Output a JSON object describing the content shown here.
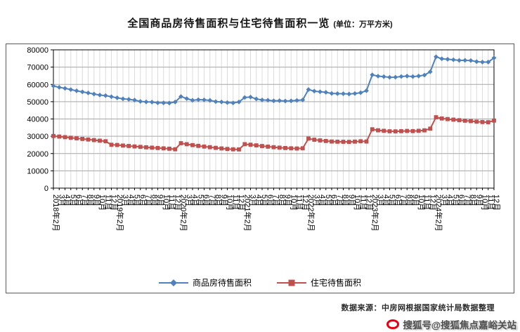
{
  "page": {
    "title_unit": "(单位：万平方米)"
  },
  "chart_data": {
    "type": "line",
    "title": "全国商品房待售面积与住宅待售面积一览",
    "unit": "万平方米",
    "ylim": [
      0,
      80000
    ],
    "y_ticks": [
      0,
      10000,
      20000,
      30000,
      40000,
      50000,
      60000,
      70000,
      80000
    ],
    "grid": {
      "horizontal": true,
      "vertical": true
    },
    "legend_position": "bottom",
    "x_labels": [
      "2018年2月",
      "3月",
      "4月",
      "5月",
      "6月",
      "7月",
      "8月",
      "9月",
      "10月",
      "11月",
      "12月",
      "2019年2月",
      "3月",
      "4月",
      "5月",
      "6月",
      "7月",
      "8月",
      "9月",
      "10月",
      "11月",
      "12月",
      "2020年2月",
      "3月",
      "4月",
      "5月",
      "6月",
      "7月",
      "8月",
      "9月",
      "10月",
      "11月",
      "12月",
      "2021年2月",
      "3月",
      "4月",
      "5月",
      "6月",
      "7月",
      "8月",
      "9月",
      "10月",
      "11月",
      "12月",
      "2022年2月",
      "3月",
      "4月",
      "5月",
      "6月",
      "7月",
      "8月",
      "9月",
      "10月",
      "11月",
      "12月",
      "2023年2月",
      "3月",
      "4月",
      "5月",
      "6月",
      "7月",
      "8月",
      "9月",
      "10月",
      "11月",
      "12月",
      "2024年2月",
      "3月",
      "4月",
      "5月",
      "6月",
      "7月",
      "8月",
      "9月",
      "10月",
      "11月",
      "12月"
    ],
    "series": [
      {
        "name": "商品房待售面积",
        "color": "#4f81bd",
        "marker": "diamond",
        "values": [
          59090,
          58330,
          57730,
          57010,
          56310,
          55680,
          55080,
          54420,
          53870,
          53520,
          52900,
          52250,
          51650,
          51380,
          50930,
          50160,
          49880,
          49780,
          49350,
          49320,
          49220,
          49820,
          53000,
          51780,
          50830,
          51180,
          51080,
          50780,
          50050,
          49840,
          49490,
          49290,
          49850,
          52430,
          52690,
          51590,
          51030,
          50860,
          50490,
          50590,
          50390,
          50490,
          50760,
          51020,
          57030,
          56110,
          55740,
          55430,
          54780,
          54660,
          54610,
          54450,
          54730,
          55200,
          56370,
          65530,
          64770,
          64490,
          64120,
          64160,
          64560,
          64800,
          64540,
          64840,
          65390,
          67300,
          75970,
          74830,
          74550,
          74260,
          73890,
          73930,
          73810,
          73180,
          72920,
          72910,
          75330
        ]
      },
      {
        "name": "住宅待售面积",
        "color": "#c0504d",
        "marker": "square",
        "values": [
          30160,
          29820,
          29480,
          29140,
          28800,
          28460,
          28120,
          27780,
          27440,
          27100,
          25090,
          24950,
          24620,
          24380,
          24100,
          23850,
          23610,
          23400,
          23200,
          23000,
          22800,
          22470,
          25980,
          25400,
          24870,
          24440,
          24030,
          23680,
          23290,
          22950,
          22650,
          22440,
          22380,
          25420,
          25110,
          24730,
          24340,
          23990,
          23670,
          23410,
          23190,
          23020,
          22910,
          23030,
          28650,
          28000,
          27600,
          27250,
          26950,
          26850,
          26800,
          26750,
          26900,
          27100,
          26950,
          34030,
          33450,
          33150,
          32880,
          32820,
          32950,
          33080,
          32980,
          33150,
          33420,
          34400,
          41000,
          40290,
          39940,
          39610,
          39290,
          39010,
          38760,
          38440,
          38230,
          38130,
          39090
        ]
      }
    ]
  },
  "footer": {
    "source": "数据来源：中房网根据国家统计局数据整理"
  },
  "watermark": {
    "text": "搜狐号@搜狐焦点嘉峪关站",
    "logo_color": "#e60012"
  }
}
